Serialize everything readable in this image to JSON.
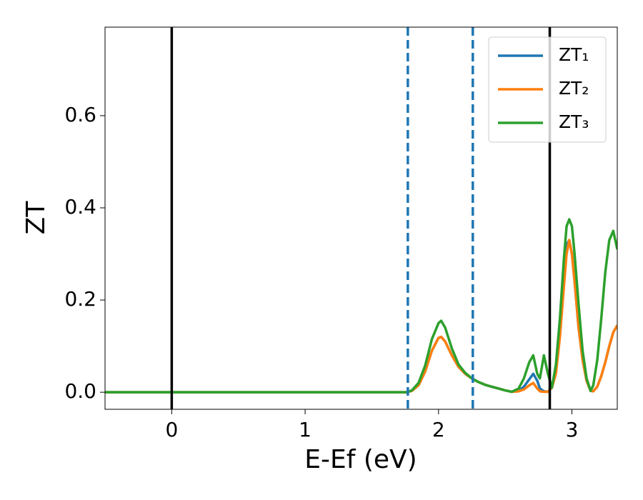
{
  "chart_data": {
    "type": "line",
    "x_label": "E-Ef (eV)",
    "y_label": "ZT",
    "xlim": [
      -0.5,
      3.34
    ],
    "ylim": [
      -0.037,
      0.792
    ],
    "xticks": [
      0,
      1,
      2,
      3
    ],
    "yticks": [
      {
        "value": 0,
        "label": "0.0"
      },
      0.2,
      0.4,
      0.6
    ],
    "legend": "upper right",
    "vlines": [
      {
        "x": 0,
        "color": "#000000",
        "style": "solid"
      },
      {
        "x": 2.834,
        "color": "#000000",
        "style": "solid"
      },
      {
        "x": 1.77,
        "color": "#1f77b4",
        "style": "dashed"
      },
      {
        "x": 2.257,
        "color": "#1f77b4",
        "style": "dashed"
      }
    ],
    "x": [
      -0.5,
      1.7,
      1.76,
      1.8,
      1.85,
      1.9,
      1.95,
      2.0,
      2.02,
      2.05,
      2.1,
      2.15,
      2.2,
      2.25,
      2.3,
      2.35,
      2.4,
      2.45,
      2.5,
      2.55,
      2.6,
      2.64,
      2.68,
      2.71,
      2.74,
      2.76,
      2.79,
      2.82,
      2.85,
      2.88,
      2.91,
      2.94,
      2.96,
      2.98,
      3.0,
      3.02,
      3.05,
      3.08,
      3.11,
      3.14,
      3.16,
      3.19,
      3.22,
      3.25,
      3.28,
      3.31,
      3.34
    ],
    "series": [
      {
        "name": "ZT₁",
        "color": "#1f77b4",
        "values": [
          0,
          0,
          0,
          0.003,
          0.015,
          0.045,
          0.09,
          0.118,
          0.12,
          0.11,
          0.08,
          0.055,
          0.04,
          0.03,
          0.022,
          0.016,
          0.012,
          0.008,
          0.004,
          0.001,
          0.003,
          0.012,
          0.028,
          0.04,
          0.025,
          0.008,
          0.002,
          0.001,
          0.01,
          0.05,
          0.14,
          0.26,
          0.32,
          0.33,
          0.3,
          0.24,
          0.14,
          0.07,
          0.025,
          0.003,
          0.002,
          0.012,
          0.035,
          0.065,
          0.1,
          0.13,
          0.145
        ]
      },
      {
        "name": "ZT₂",
        "color": "#ff7f0e",
        "values": [
          0,
          0,
          0,
          0.003,
          0.015,
          0.045,
          0.09,
          0.118,
          0.12,
          0.11,
          0.08,
          0.055,
          0.04,
          0.03,
          0.022,
          0.016,
          0.012,
          0.008,
          0.004,
          0.001,
          0.002,
          0.006,
          0.015,
          0.02,
          0.008,
          0.002,
          0.001,
          0.001,
          0.01,
          0.04,
          0.12,
          0.23,
          0.3,
          0.33,
          0.3,
          0.24,
          0.14,
          0.07,
          0.025,
          0.003,
          0.002,
          0.012,
          0.035,
          0.065,
          0.1,
          0.13,
          0.145
        ]
      },
      {
        "name": "ZT₃",
        "color": "#2ca02c",
        "values": [
          0,
          0,
          0,
          0.004,
          0.02,
          0.058,
          0.115,
          0.15,
          0.155,
          0.14,
          0.095,
          0.06,
          0.042,
          0.03,
          0.022,
          0.016,
          0.012,
          0.008,
          0.004,
          0.001,
          0.008,
          0.03,
          0.065,
          0.08,
          0.04,
          0.03,
          0.08,
          0.04,
          0.01,
          0.06,
          0.16,
          0.29,
          0.36,
          0.375,
          0.36,
          0.3,
          0.19,
          0.09,
          0.03,
          0.003,
          0.015,
          0.07,
          0.16,
          0.26,
          0.33,
          0.35,
          0.31
        ]
      }
    ]
  }
}
